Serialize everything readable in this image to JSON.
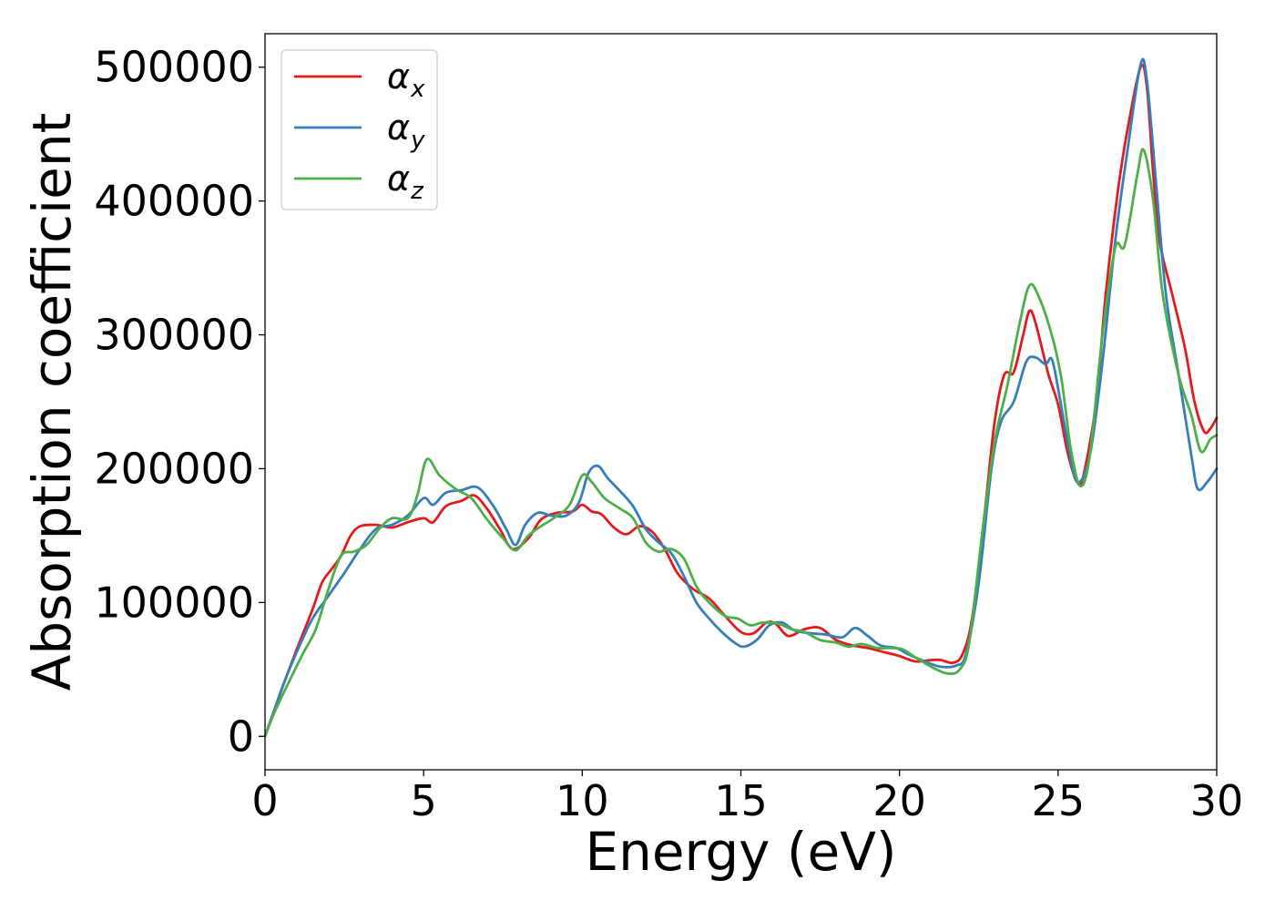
{
  "chart_data": {
    "type": "line",
    "xlabel": "Energy (eV)",
    "ylabel": "Absorption coefficient",
    "xlim": [
      0,
      30
    ],
    "ylim": [
      -25000,
      525000
    ],
    "x_ticks": [
      0,
      5,
      10,
      15,
      20,
      25,
      30
    ],
    "y_ticks": [
      0,
      100000,
      200000,
      300000,
      400000,
      500000
    ],
    "grid": false,
    "legend_position": "top-left",
    "series": [
      {
        "name": "α_x",
        "name_main": "α",
        "name_sub": "x",
        "color": "#e41a1c",
        "points": [
          [
            0,
            0
          ],
          [
            0.3,
            20000
          ],
          [
            0.6,
            40000
          ],
          [
            1,
            65000
          ],
          [
            1.5,
            95000
          ],
          [
            1.8,
            115000
          ],
          [
            2.1,
            125000
          ],
          [
            2.4,
            135000
          ],
          [
            2.7,
            150000
          ],
          [
            3,
            157000
          ],
          [
            3.5,
            158000
          ],
          [
            4,
            156000
          ],
          [
            4.5,
            160000
          ],
          [
            5,
            163000
          ],
          [
            5.3,
            160000
          ],
          [
            5.7,
            172000
          ],
          [
            6.2,
            176000
          ],
          [
            6.6,
            180000
          ],
          [
            7,
            170000
          ],
          [
            7.4,
            155000
          ],
          [
            7.8,
            140000
          ],
          [
            8.3,
            148000
          ],
          [
            8.7,
            162000
          ],
          [
            9.2,
            167000
          ],
          [
            9.7,
            168000
          ],
          [
            10,
            173000
          ],
          [
            10.3,
            168000
          ],
          [
            10.6,
            166000
          ],
          [
            11,
            156000
          ],
          [
            11.4,
            151000
          ],
          [
            11.8,
            157000
          ],
          [
            12.2,
            153000
          ],
          [
            12.6,
            140000
          ],
          [
            13,
            122000
          ],
          [
            13.5,
            110000
          ],
          [
            14,
            103000
          ],
          [
            14.5,
            90000
          ],
          [
            15,
            78000
          ],
          [
            15.4,
            77000
          ],
          [
            15.8,
            85000
          ],
          [
            16.1,
            84000
          ],
          [
            16.5,
            75000
          ],
          [
            17,
            80000
          ],
          [
            17.5,
            81000
          ],
          [
            18,
            72000
          ],
          [
            18.5,
            68000
          ],
          [
            19,
            66000
          ],
          [
            19.5,
            63000
          ],
          [
            20,
            60000
          ],
          [
            20.5,
            56000
          ],
          [
            21,
            57000
          ],
          [
            21.3,
            57000
          ],
          [
            21.7,
            55000
          ],
          [
            22,
            62000
          ],
          [
            22.3,
            90000
          ],
          [
            22.7,
            170000
          ],
          [
            23,
            235000
          ],
          [
            23.3,
            270000
          ],
          [
            23.6,
            272000
          ],
          [
            23.9,
            300000
          ],
          [
            24.1,
            318000
          ],
          [
            24.3,
            308000
          ],
          [
            24.7,
            270000
          ],
          [
            25,
            248000
          ],
          [
            25.3,
            212000
          ],
          [
            25.6,
            190000
          ],
          [
            25.8,
            195000
          ],
          [
            26.2,
            250000
          ],
          [
            26.5,
            330000
          ],
          [
            26.9,
            410000
          ],
          [
            27.2,
            455000
          ],
          [
            27.6,
            500000
          ],
          [
            27.8,
            485000
          ],
          [
            28,
            420000
          ],
          [
            28.2,
            370000
          ],
          [
            28.6,
            330000
          ],
          [
            29,
            290000
          ],
          [
            29.3,
            250000
          ],
          [
            29.6,
            228000
          ],
          [
            29.8,
            230000
          ],
          [
            30,
            238000
          ]
        ]
      },
      {
        "name": "α_y",
        "name_main": "α",
        "name_sub": "y",
        "color": "#377eb8",
        "points": [
          [
            0,
            0
          ],
          [
            0.3,
            20000
          ],
          [
            0.6,
            40000
          ],
          [
            1,
            63000
          ],
          [
            1.5,
            88000
          ],
          [
            2,
            105000
          ],
          [
            2.5,
            122000
          ],
          [
            3,
            140000
          ],
          [
            3.5,
            155000
          ],
          [
            4,
            158000
          ],
          [
            4.5,
            165000
          ],
          [
            5,
            178000
          ],
          [
            5.3,
            173000
          ],
          [
            5.7,
            182000
          ],
          [
            6.2,
            184000
          ],
          [
            6.7,
            186000
          ],
          [
            7.2,
            172000
          ],
          [
            7.6,
            155000
          ],
          [
            7.9,
            143000
          ],
          [
            8.2,
            158000
          ],
          [
            8.6,
            167000
          ],
          [
            9,
            165000
          ],
          [
            9.5,
            165000
          ],
          [
            9.9,
            175000
          ],
          [
            10.2,
            197000
          ],
          [
            10.5,
            202000
          ],
          [
            10.8,
            193000
          ],
          [
            11.2,
            183000
          ],
          [
            11.6,
            172000
          ],
          [
            12,
            155000
          ],
          [
            12.4,
            145000
          ],
          [
            12.8,
            137000
          ],
          [
            13.2,
            120000
          ],
          [
            13.6,
            100000
          ],
          [
            14,
            88000
          ],
          [
            14.4,
            78000
          ],
          [
            14.8,
            70000
          ],
          [
            15.1,
            67000
          ],
          [
            15.5,
            72000
          ],
          [
            15.9,
            83000
          ],
          [
            16.3,
            85000
          ],
          [
            16.7,
            79000
          ],
          [
            17.2,
            77000
          ],
          [
            17.7,
            76000
          ],
          [
            18.2,
            74000
          ],
          [
            18.6,
            81000
          ],
          [
            19,
            75000
          ],
          [
            19.4,
            68000
          ],
          [
            19.9,
            66000
          ],
          [
            20.3,
            61000
          ],
          [
            20.8,
            56000
          ],
          [
            21.3,
            52000
          ],
          [
            21.8,
            53000
          ],
          [
            22.1,
            62000
          ],
          [
            22.5,
            115000
          ],
          [
            22.9,
            200000
          ],
          [
            23.2,
            235000
          ],
          [
            23.6,
            250000
          ],
          [
            24,
            280000
          ],
          [
            24.3,
            283000
          ],
          [
            24.6,
            278000
          ],
          [
            24.8,
            282000
          ],
          [
            25,
            260000
          ],
          [
            25.3,
            220000
          ],
          [
            25.6,
            190000
          ],
          [
            26,
            210000
          ],
          [
            26.4,
            280000
          ],
          [
            26.8,
            370000
          ],
          [
            27.2,
            440000
          ],
          [
            27.6,
            502000
          ],
          [
            27.8,
            490000
          ],
          [
            28.1,
            410000
          ],
          [
            28.4,
            330000
          ],
          [
            28.8,
            270000
          ],
          [
            29.2,
            210000
          ],
          [
            29.4,
            185000
          ],
          [
            29.7,
            190000
          ],
          [
            30,
            200000
          ]
        ]
      },
      {
        "name": "α_z",
        "name_main": "α",
        "name_sub": "z",
        "color": "#4daf4a",
        "points": [
          [
            0,
            0
          ],
          [
            0.3,
            18000
          ],
          [
            0.7,
            38000
          ],
          [
            1.2,
            62000
          ],
          [
            1.6,
            80000
          ],
          [
            2,
            110000
          ],
          [
            2.4,
            135000
          ],
          [
            2.8,
            138000
          ],
          [
            3.2,
            143000
          ],
          [
            3.6,
            155000
          ],
          [
            4,
            163000
          ],
          [
            4.5,
            163000
          ],
          [
            4.8,
            180000
          ],
          [
            5.1,
            207000
          ],
          [
            5.5,
            195000
          ],
          [
            6,
            185000
          ],
          [
            6.5,
            178000
          ],
          [
            7,
            162000
          ],
          [
            7.5,
            148000
          ],
          [
            7.9,
            139000
          ],
          [
            8.3,
            150000
          ],
          [
            8.7,
            157000
          ],
          [
            9.1,
            163000
          ],
          [
            9.6,
            173000
          ],
          [
            10,
            195000
          ],
          [
            10.3,
            190000
          ],
          [
            10.7,
            178000
          ],
          [
            11.2,
            170000
          ],
          [
            11.6,
            163000
          ],
          [
            12,
            145000
          ],
          [
            12.4,
            138000
          ],
          [
            12.8,
            140000
          ],
          [
            13.2,
            133000
          ],
          [
            13.6,
            112000
          ],
          [
            14,
            100000
          ],
          [
            14.5,
            90000
          ],
          [
            14.9,
            88000
          ],
          [
            15.3,
            83000
          ],
          [
            15.7,
            85000
          ],
          [
            16.2,
            84000
          ],
          [
            16.6,
            80000
          ],
          [
            17,
            78000
          ],
          [
            17.5,
            72000
          ],
          [
            18,
            70000
          ],
          [
            18.4,
            67000
          ],
          [
            18.8,
            69000
          ],
          [
            19.3,
            66000
          ],
          [
            19.7,
            66000
          ],
          [
            20.1,
            65000
          ],
          [
            20.5,
            59000
          ],
          [
            21,
            52000
          ],
          [
            21.5,
            47000
          ],
          [
            21.9,
            50000
          ],
          [
            22.2,
            70000
          ],
          [
            22.6,
            150000
          ],
          [
            23,
            220000
          ],
          [
            23.4,
            262000
          ],
          [
            23.8,
            310000
          ],
          [
            24.1,
            337000
          ],
          [
            24.4,
            328000
          ],
          [
            24.8,
            300000
          ],
          [
            25.1,
            268000
          ],
          [
            25.4,
            215000
          ],
          [
            25.7,
            187000
          ],
          [
            26,
            210000
          ],
          [
            26.4,
            300000
          ],
          [
            26.8,
            365000
          ],
          [
            27.1,
            367000
          ],
          [
            27.5,
            420000
          ],
          [
            27.7,
            438000
          ],
          [
            28,
            400000
          ],
          [
            28.3,
            330000
          ],
          [
            28.8,
            270000
          ],
          [
            29.2,
            240000
          ],
          [
            29.5,
            213000
          ],
          [
            29.8,
            222000
          ],
          [
            30,
            225000
          ]
        ]
      }
    ]
  }
}
